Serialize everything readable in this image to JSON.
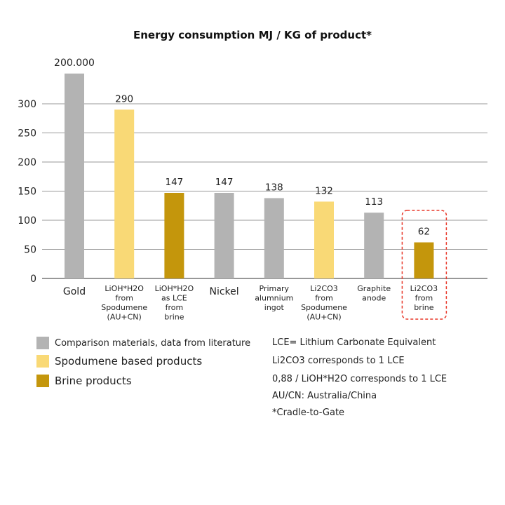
{
  "chart_data": {
    "type": "bar",
    "title": "Energy consumption MJ / KG of product*",
    "xlabel": "",
    "ylabel": "",
    "ylim": [
      0,
      300
    ],
    "yticks": [
      0,
      50,
      100,
      150,
      200,
      250,
      300
    ],
    "grid": true,
    "categories": [
      [
        "Gold"
      ],
      [
        "LiOH*H2O",
        "from",
        "Spodumene",
        "(AU+CN)"
      ],
      [
        "LiOH*H2O",
        "as LCE",
        "from",
        "brine"
      ],
      [
        "Nickel"
      ],
      [
        "Primary",
        "alumnium",
        "ingot"
      ],
      [
        "Li2CO3",
        "from",
        "Spodumene",
        "(AU+CN)"
      ],
      [
        "Graphite",
        "anode"
      ],
      [
        "Li2CO3",
        "from",
        "brine"
      ]
    ],
    "values": [
      200000,
      290,
      147,
      147,
      138,
      132,
      113,
      62
    ],
    "value_labels": [
      "200.000",
      "290",
      "147",
      "147",
      "138",
      "132",
      "113",
      "62"
    ],
    "groups": [
      "comparison",
      "spodumene",
      "brine",
      "comparison",
      "comparison",
      "spodumene",
      "comparison",
      "brine"
    ],
    "axis_break_display_value": 352,
    "highlighted_category_index": 7,
    "legend": [
      {
        "key": "comparison",
        "label": "Comparison materials, data from literature",
        "color": "#b3b3b3"
      },
      {
        "key": "spodumene",
        "label": "Spodumene based products",
        "color": "#f9d976"
      },
      {
        "key": "brine",
        "label": "Brine products",
        "color": "#c4960c"
      }
    ],
    "legend_placement": "bottom-left",
    "notes": [
      "LCE= Lithium Carbonate Equivalent",
      "Li2CO3 corresponds to 1 LCE",
      "0,88 / LiOH*H2O corresponds to 1 LCE",
      "AU/CN: Australia/China",
      "*Cradle-to-Gate"
    ],
    "highlight_color": "#e8382a"
  }
}
